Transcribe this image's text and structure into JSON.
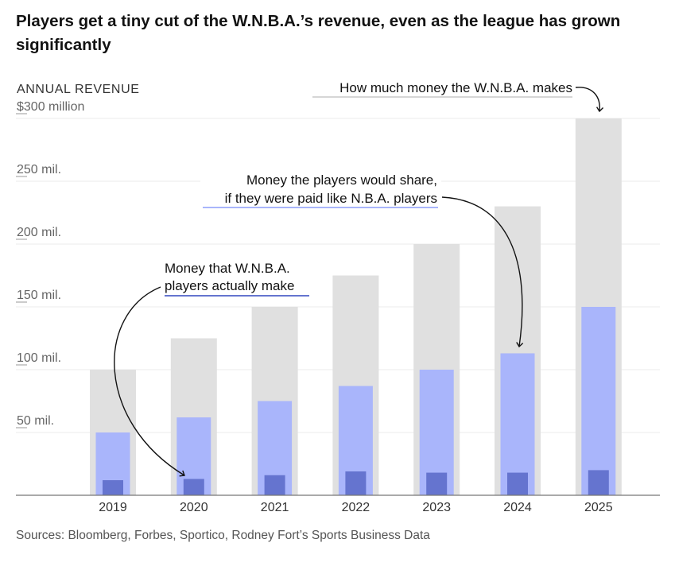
{
  "title": "Players get a tiny cut of the W.N.B.A.’s revenue, even as the league has grown significantly",
  "source": "Sources: Bloomberg, Forbes, Sportico, Rodney Fort’s Sports Business Data",
  "chart_data": {
    "type": "bar",
    "ylabel": "ANNUAL REVENUE",
    "ylim": [
      0,
      300
    ],
    "yticks": [
      {
        "value": 300,
        "label": "$300 million"
      },
      {
        "value": 250,
        "label": "250 mil."
      },
      {
        "value": 200,
        "label": "200 mil."
      },
      {
        "value": 150,
        "label": "150 mil."
      },
      {
        "value": 100,
        "label": "100 mil."
      },
      {
        "value": 50,
        "label": "50 mil."
      }
    ],
    "categories": [
      "2019",
      "2020",
      "2021",
      "2022",
      "2023",
      "2024",
      "2025"
    ],
    "series": [
      {
        "name": "How much money the W.N.B.A. makes",
        "values": [
          100,
          125,
          150,
          175,
          200,
          230,
          300
        ],
        "color": "#e0e0e0"
      },
      {
        "name": "Money the players would share, if they were paid like N.B.A. players",
        "values": [
          50,
          62,
          75,
          87,
          100,
          113,
          150
        ],
        "color": "#a9b5fb"
      },
      {
        "name": "Money that W.N.B.A. players actually make",
        "values": [
          12,
          13,
          16,
          19,
          18,
          18,
          20
        ],
        "color": "#6574cf"
      }
    ],
    "annotations": {
      "total": "How much money the W.N.B.A. makes",
      "potential_line1": "Money the players would share,",
      "potential_line2": "if they were paid like N.B.A. players",
      "actual_line1": "Money that W.N.B.A.",
      "actual_line2": "players actually make"
    }
  }
}
